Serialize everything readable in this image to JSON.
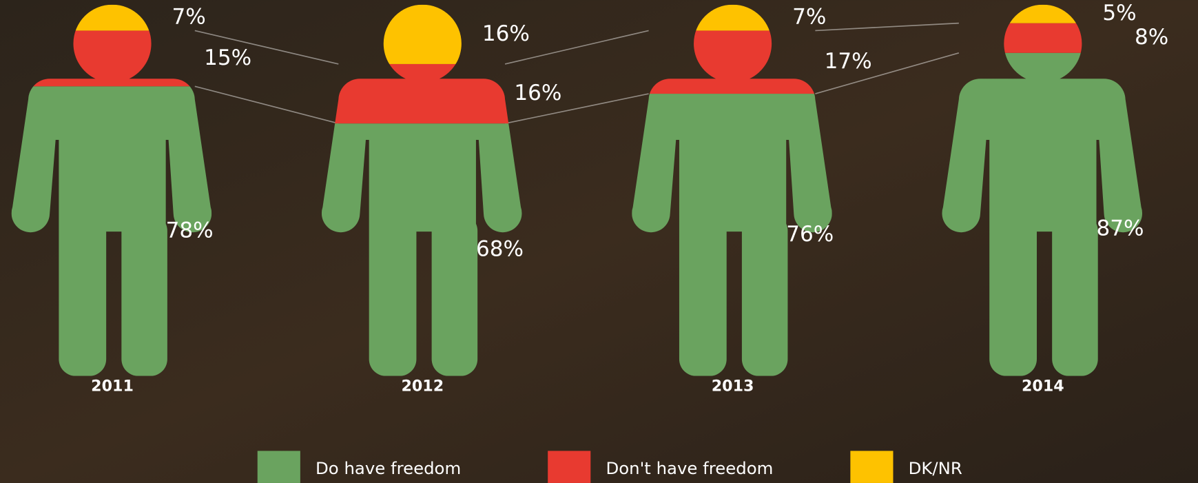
{
  "chart_data": {
    "type": "pictogram",
    "categories": [
      "2011",
      "2012",
      "2013",
      "2014"
    ],
    "series": [
      {
        "name": "Do have freedom",
        "color": "#6aa35f",
        "values": [
          78,
          68,
          76,
          87
        ],
        "value_labels": [
          "78%",
          "68%",
          "76%",
          "87%"
        ]
      },
      {
        "name": "Don't have freedom",
        "color": "#e83a30",
        "values": [
          15,
          16,
          17,
          8
        ],
        "value_labels": [
          "15%",
          "16%",
          "17%",
          "8%"
        ]
      },
      {
        "name": "DK/NR",
        "color": "#fec200",
        "values": [
          7,
          16,
          7,
          5
        ],
        "value_labels": [
          "7%",
          "16%",
          "7%",
          "5%"
        ]
      }
    ]
  }
}
